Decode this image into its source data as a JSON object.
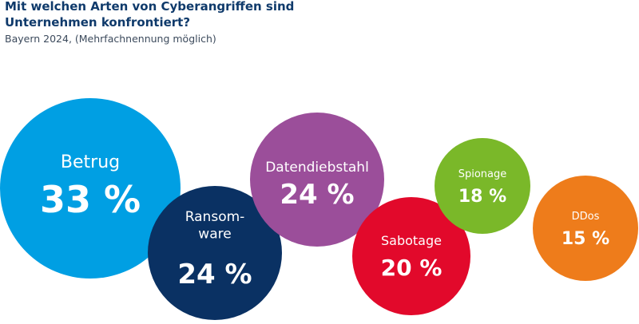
{
  "title_lines": [
    "Mit welchen Arten von Cyberangriffen sind",
    "Unternehmen konfrontiert?"
  ],
  "subtitle": "Bayern 2024, (Mehrfachnennung möglich)",
  "chart_data": {
    "type": "bubble",
    "unit": "%",
    "categories": [
      {
        "label_lines": [
          "Betrug"
        ],
        "value": 33,
        "value_text": "33 %",
        "color": "#009fe3"
      },
      {
        "label_lines": [
          "Ransom-",
          "ware"
        ],
        "value": 24,
        "value_text": "24 %",
        "color": "#0a3163"
      },
      {
        "label_lines": [
          "Datendiebstahl"
        ],
        "value": 24,
        "value_text": "24 %",
        "color": "#9b4e9a"
      },
      {
        "label_lines": [
          "Sabotage"
        ],
        "value": 20,
        "value_text": "20 %",
        "color": "#e2092b"
      },
      {
        "label_lines": [
          "Spionage"
        ],
        "value": 18,
        "value_text": "18 %",
        "color": "#7ab829"
      },
      {
        "label_lines": [
          "DDos"
        ],
        "value": 15,
        "value_text": "15 %",
        "color": "#ee7c1b"
      }
    ]
  }
}
